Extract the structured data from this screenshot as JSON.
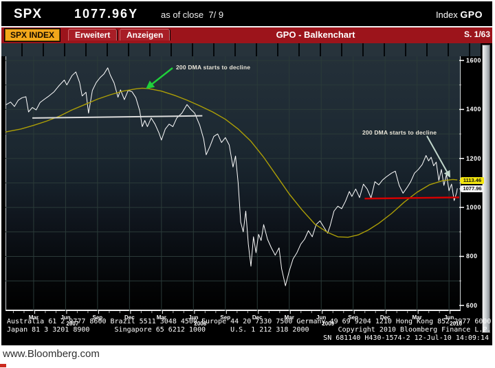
{
  "header": {
    "ticker": "SPX",
    "price": "1077.96Y",
    "as_of": "as of close  7/ 9",
    "index_label": "Index",
    "function_code": "GPO"
  },
  "toolbar": {
    "security_button": "SPX INDEX",
    "tabs": [
      "Erweitert",
      "Anzeigen"
    ],
    "title": "GPO - Balkenchart",
    "page": "S. 1/63"
  },
  "annotations": {
    "dma_top": "200 DMA starts to decline",
    "dma_right": "200 DMA starts to decline"
  },
  "price_markers": {
    "dma_value": "1113.46",
    "last_value": "1077.96"
  },
  "footer": {
    "lines": [
      "Australia 61 2 9777 8600 Brazil 5511 3048 4500 Europe 44 20 7330 7500 Germany 49 69 9204 1210 Hong Kong 852 2977 6000",
      "Japan 81 3 3201 8900      Singapore 65 6212 1000      U.S. 1 212 318 2000       Copyright 2010 Bloomberg Finance L.P.",
      "SN 681140 H430-1574-2 12-Jul-10 14:09:14"
    ]
  },
  "browser": {
    "url_text": "www.Bloomberg.com"
  },
  "colors": {
    "toolbar_red": "#9c141b",
    "security_amber": "#f2a71a",
    "price_line": "#ffffff",
    "dma_line": "#ad9f06",
    "grid": "#2b3b39",
    "arrow_green": "#1fd03a",
    "arrow_pale": "#c2d8cc",
    "support_red": "#d40000",
    "marker_yellow": "#f3e50e"
  },
  "chart_data": {
    "type": "line",
    "title": "GPO - Balkenchart",
    "x_range": [
      2006.98,
      2010.53
    ],
    "y_range": [
      577,
      1617
    ],
    "grid": true,
    "y_ticks": [
      {
        "label": "1600",
        "value": 1600
      },
      {
        "label": "1400",
        "value": 1400
      },
      {
        "label": "1200",
        "value": 1200
      },
      {
        "label": "1000",
        "value": 1000
      },
      {
        "label": "800",
        "value": 800
      },
      {
        "label": "600",
        "value": 600
      }
    ],
    "y_minor_ticks": [
      1500,
      1300,
      1100,
      900,
      700
    ],
    "y_grid": [
      700,
      800,
      900,
      1000,
      1100,
      1200,
      1300,
      1400,
      1500,
      1600
    ],
    "x_ticks": [
      {
        "label": "Mar",
        "t": 2007.2
      },
      {
        "label": "Jun",
        "t": 2007.45,
        "year": "2007"
      },
      {
        "label": "Sep",
        "t": 2007.7
      },
      {
        "label": "Dec",
        "t": 2007.95
      },
      {
        "label": "Mar",
        "t": 2008.2
      },
      {
        "label": "Jun",
        "t": 2008.45,
        "year": "2008"
      },
      {
        "label": "Sep",
        "t": 2008.7
      },
      {
        "label": "Dec",
        "t": 2008.95
      },
      {
        "label": "Mar",
        "t": 2009.2
      },
      {
        "label": "Jun",
        "t": 2009.45,
        "year": "2009"
      },
      {
        "label": "Sep",
        "t": 2009.7
      },
      {
        "label": "Dec",
        "t": 2009.95
      },
      {
        "label": "Mar",
        "t": 2010.2
      },
      {
        "label": "Jun",
        "t": 2010.45,
        "year": "2010"
      }
    ],
    "series": [
      {
        "name": "SPX Index",
        "color": "#ffffff",
        "width": 1,
        "points": [
          [
            2006.98,
            1418
          ],
          [
            2007.02,
            1430
          ],
          [
            2007.05,
            1412
          ],
          [
            2007.08,
            1438
          ],
          [
            2007.11,
            1448
          ],
          [
            2007.14,
            1452
          ],
          [
            2007.16,
            1390
          ],
          [
            2007.19,
            1408
          ],
          [
            2007.22,
            1398
          ],
          [
            2007.25,
            1428
          ],
          [
            2007.28,
            1440
          ],
          [
            2007.32,
            1455
          ],
          [
            2007.36,
            1472
          ],
          [
            2007.4,
            1498
          ],
          [
            2007.44,
            1520
          ],
          [
            2007.46,
            1500
          ],
          [
            2007.5,
            1538
          ],
          [
            2007.53,
            1553
          ],
          [
            2007.56,
            1510
          ],
          [
            2007.58,
            1455
          ],
          [
            2007.61,
            1470
          ],
          [
            2007.63,
            1385
          ],
          [
            2007.66,
            1478
          ],
          [
            2007.69,
            1510
          ],
          [
            2007.72,
            1530
          ],
          [
            2007.75,
            1545
          ],
          [
            2007.78,
            1570
          ],
          [
            2007.8,
            1540
          ],
          [
            2007.83,
            1508
          ],
          [
            2007.86,
            1450
          ],
          [
            2007.88,
            1480
          ],
          [
            2007.91,
            1440
          ],
          [
            2007.94,
            1478
          ],
          [
            2007.97,
            1472
          ],
          [
            2008.0,
            1448
          ],
          [
            2008.03,
            1395
          ],
          [
            2008.05,
            1330
          ],
          [
            2008.07,
            1355
          ],
          [
            2008.09,
            1330
          ],
          [
            2008.12,
            1365
          ],
          [
            2008.15,
            1340
          ],
          [
            2008.18,
            1305
          ],
          [
            2008.2,
            1275
          ],
          [
            2008.23,
            1320
          ],
          [
            2008.26,
            1340
          ],
          [
            2008.29,
            1330
          ],
          [
            2008.32,
            1365
          ],
          [
            2008.36,
            1385
          ],
          [
            2008.4,
            1420
          ],
          [
            2008.43,
            1400
          ],
          [
            2008.46,
            1385
          ],
          [
            2008.5,
            1335
          ],
          [
            2008.53,
            1280
          ],
          [
            2008.55,
            1215
          ],
          [
            2008.58,
            1250
          ],
          [
            2008.61,
            1290
          ],
          [
            2008.64,
            1300
          ],
          [
            2008.67,
            1265
          ],
          [
            2008.7,
            1285
          ],
          [
            2008.73,
            1255
          ],
          [
            2008.76,
            1165
          ],
          [
            2008.78,
            1210
          ],
          [
            2008.8,
            1100
          ],
          [
            2008.82,
            940
          ],
          [
            2008.84,
            900
          ],
          [
            2008.86,
            985
          ],
          [
            2008.88,
            850
          ],
          [
            2008.9,
            760
          ],
          [
            2008.92,
            880
          ],
          [
            2008.94,
            815
          ],
          [
            2008.96,
            890
          ],
          [
            2008.98,
            865
          ],
          [
            2009.0,
            930
          ],
          [
            2009.03,
            870
          ],
          [
            2009.06,
            835
          ],
          [
            2009.09,
            805
          ],
          [
            2009.12,
            835
          ],
          [
            2009.14,
            750
          ],
          [
            2009.17,
            680
          ],
          [
            2009.2,
            740
          ],
          [
            2009.23,
            790
          ],
          [
            2009.26,
            815
          ],
          [
            2009.29,
            850
          ],
          [
            2009.32,
            870
          ],
          [
            2009.35,
            905
          ],
          [
            2009.38,
            880
          ],
          [
            2009.41,
            930
          ],
          [
            2009.44,
            945
          ],
          [
            2009.47,
            920
          ],
          [
            2009.5,
            895
          ],
          [
            2009.52,
            925
          ],
          [
            2009.55,
            985
          ],
          [
            2009.58,
            1005
          ],
          [
            2009.61,
            995
          ],
          [
            2009.64,
            1025
          ],
          [
            2009.67,
            1065
          ],
          [
            2009.69,
            1045
          ],
          [
            2009.72,
            1075
          ],
          [
            2009.75,
            1040
          ],
          [
            2009.78,
            1095
          ],
          [
            2009.81,
            1075
          ],
          [
            2009.84,
            1038
          ],
          [
            2009.87,
            1105
          ],
          [
            2009.9,
            1092
          ],
          [
            2009.93,
            1112
          ],
          [
            2009.96,
            1125
          ],
          [
            2010.0,
            1140
          ],
          [
            2010.03,
            1148
          ],
          [
            2010.06,
            1090
          ],
          [
            2010.09,
            1058
          ],
          [
            2010.12,
            1080
          ],
          [
            2010.15,
            1105
          ],
          [
            2010.18,
            1140
          ],
          [
            2010.21,
            1155
          ],
          [
            2010.24,
            1175
          ],
          [
            2010.27,
            1212
          ],
          [
            2010.29,
            1190
          ],
          [
            2010.31,
            1205
          ],
          [
            2010.33,
            1170
          ],
          [
            2010.35,
            1185
          ],
          [
            2010.37,
            1110
          ],
          [
            2010.39,
            1155
          ],
          [
            2010.41,
            1090
          ],
          [
            2010.43,
            1135
          ],
          [
            2010.45,
            1068
          ],
          [
            2010.47,
            1095
          ],
          [
            2010.49,
            1028
          ],
          [
            2010.51,
            1062
          ],
          [
            2010.515,
            1078
          ]
        ]
      },
      {
        "name": "200 DMA",
        "color": "#ad9f06",
        "width": 1.4,
        "points": [
          [
            2006.98,
            1308
          ],
          [
            2007.1,
            1320
          ],
          [
            2007.2,
            1335
          ],
          [
            2007.3,
            1352
          ],
          [
            2007.4,
            1372
          ],
          [
            2007.5,
            1398
          ],
          [
            2007.6,
            1420
          ],
          [
            2007.7,
            1442
          ],
          [
            2007.8,
            1460
          ],
          [
            2007.9,
            1475
          ],
          [
            2008.0,
            1484
          ],
          [
            2008.05,
            1487
          ],
          [
            2008.1,
            1485
          ],
          [
            2008.2,
            1475
          ],
          [
            2008.3,
            1458
          ],
          [
            2008.4,
            1438
          ],
          [
            2008.5,
            1415
          ],
          [
            2008.6,
            1390
          ],
          [
            2008.7,
            1360
          ],
          [
            2008.8,
            1320
          ],
          [
            2008.9,
            1270
          ],
          [
            2009.0,
            1205
          ],
          [
            2009.1,
            1130
          ],
          [
            2009.2,
            1055
          ],
          [
            2009.3,
            990
          ],
          [
            2009.4,
            932
          ],
          [
            2009.5,
            898
          ],
          [
            2009.58,
            880
          ],
          [
            2009.66,
            878
          ],
          [
            2009.74,
            888
          ],
          [
            2009.82,
            908
          ],
          [
            2009.9,
            935
          ],
          [
            2010.0,
            975
          ],
          [
            2010.1,
            1022
          ],
          [
            2010.2,
            1062
          ],
          [
            2010.3,
            1093
          ],
          [
            2010.4,
            1109
          ],
          [
            2010.48,
            1114
          ],
          [
            2010.515,
            1112
          ]
        ]
      }
    ],
    "trendlines": [
      {
        "name": "resistance-2007",
        "color": "#dcdcdc",
        "width": 2,
        "from": [
          2007.19,
          1365
        ],
        "to": [
          2008.52,
          1374
        ]
      },
      {
        "name": "support-2010",
        "color": "#d40000",
        "width": 2.5,
        "from": [
          2009.79,
          1036
        ],
        "to": [
          2010.53,
          1041
        ]
      }
    ],
    "arrows": [
      {
        "name": "arrow-top",
        "color": "#1fd03a",
        "width": 2.4,
        "from": [
          249,
          97
        ],
        "to": [
          212,
          126
        ]
      },
      {
        "name": "arrow-right",
        "color": "#c2d8cc",
        "width": 2.0,
        "from": [
          619,
          196
        ],
        "to": [
          652,
          255
        ]
      }
    ],
    "legend_position": "none"
  }
}
